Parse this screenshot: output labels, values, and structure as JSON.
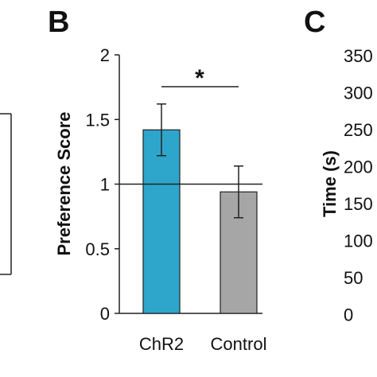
{
  "panels": {
    "b_letter": "B",
    "c_letter": "C"
  },
  "chart_data": [
    {
      "type": "bar",
      "title": "",
      "xlabel": "",
      "ylabel": "Preference Score",
      "ylim": [
        0,
        2
      ],
      "yticks": [
        "0",
        "0.5",
        "1",
        "1.5",
        "2"
      ],
      "categories": [
        "ChR2",
        "Control"
      ],
      "values": [
        1.42,
        0.94
      ],
      "errors": [
        0.2,
        0.2
      ],
      "colors": [
        "#2ea6cb",
        "#a6a6a6"
      ],
      "reference_line": 1,
      "significance": {
        "between": [
          "ChR2",
          "Control"
        ],
        "label": "*"
      },
      "grid": false
    },
    {
      "type": "bar",
      "title": "",
      "ylabel": "Time (s)",
      "yticks_visible": [
        "350",
        "300",
        "250",
        "200",
        "150",
        "100",
        "50",
        "0"
      ],
      "note": ""
    }
  ]
}
